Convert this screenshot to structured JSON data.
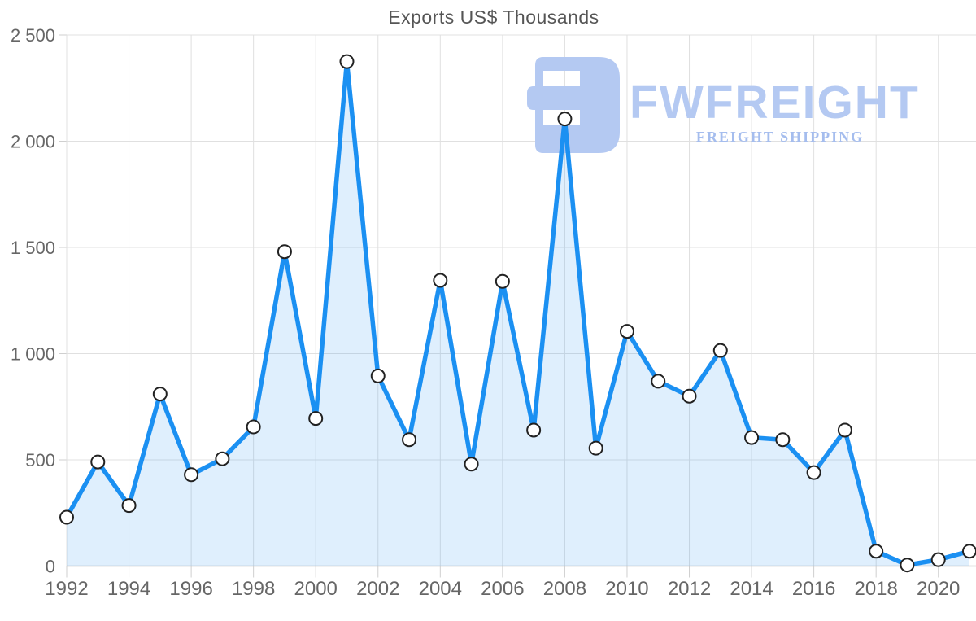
{
  "title": "Exports US$ Thousands",
  "logo": {
    "wordmark": "FWFREIGHT",
    "tagline": "FREIGHT SHIPPING"
  },
  "colors": {
    "line": "#1b90f2",
    "area_fill": "rgba(27,144,242,0.14)",
    "grid": "#e0e0e0",
    "tick": "#cfcfcf",
    "axis_line": "#c8c8c8",
    "tick_text": "#666666",
    "title_text": "#555555",
    "marker_fill": "#ffffff",
    "marker_stroke": "#222222",
    "logo_primary": "#b4c9f2",
    "logo_tagline": "#a5bdee"
  },
  "chart_data": {
    "type": "area",
    "title": "Exports US$ Thousands",
    "series_name": "Exports",
    "xlabel": "",
    "ylabel": "",
    "x": [
      1992,
      1993,
      1994,
      1995,
      1996,
      1997,
      1998,
      1999,
      2000,
      2001,
      2002,
      2003,
      2004,
      2005,
      2006,
      2007,
      2008,
      2009,
      2010,
      2011,
      2012,
      2013,
      2014,
      2015,
      2016,
      2017,
      2018,
      2019,
      2020,
      2021
    ],
    "values": [
      230,
      490,
      285,
      810,
      430,
      505,
      655,
      1480,
      695,
      2375,
      895,
      595,
      1345,
      480,
      1340,
      640,
      2105,
      555,
      1105,
      870,
      800,
      1015,
      605,
      595,
      440,
      640,
      70,
      5,
      30,
      70
    ],
    "ylim": [
      0,
      2500
    ],
    "ytick_values": [
      0,
      500,
      1000,
      1500,
      2000,
      2500
    ],
    "ytick_labels": [
      "0",
      "500",
      "1 000",
      "1 500",
      "2 000",
      "2 500"
    ],
    "xtick_values": [
      1992,
      1994,
      1996,
      1998,
      2000,
      2002,
      2004,
      2006,
      2008,
      2010,
      2012,
      2014,
      2016,
      2018,
      2020
    ],
    "xtick_labels": [
      "1992",
      "1994",
      "1996",
      "1998",
      "2000",
      "2002",
      "2004",
      "2006",
      "2008",
      "2010",
      "2012",
      "2014",
      "2016",
      "2018",
      "2020"
    ],
    "grid": true,
    "legend": false,
    "marker": "circle"
  }
}
